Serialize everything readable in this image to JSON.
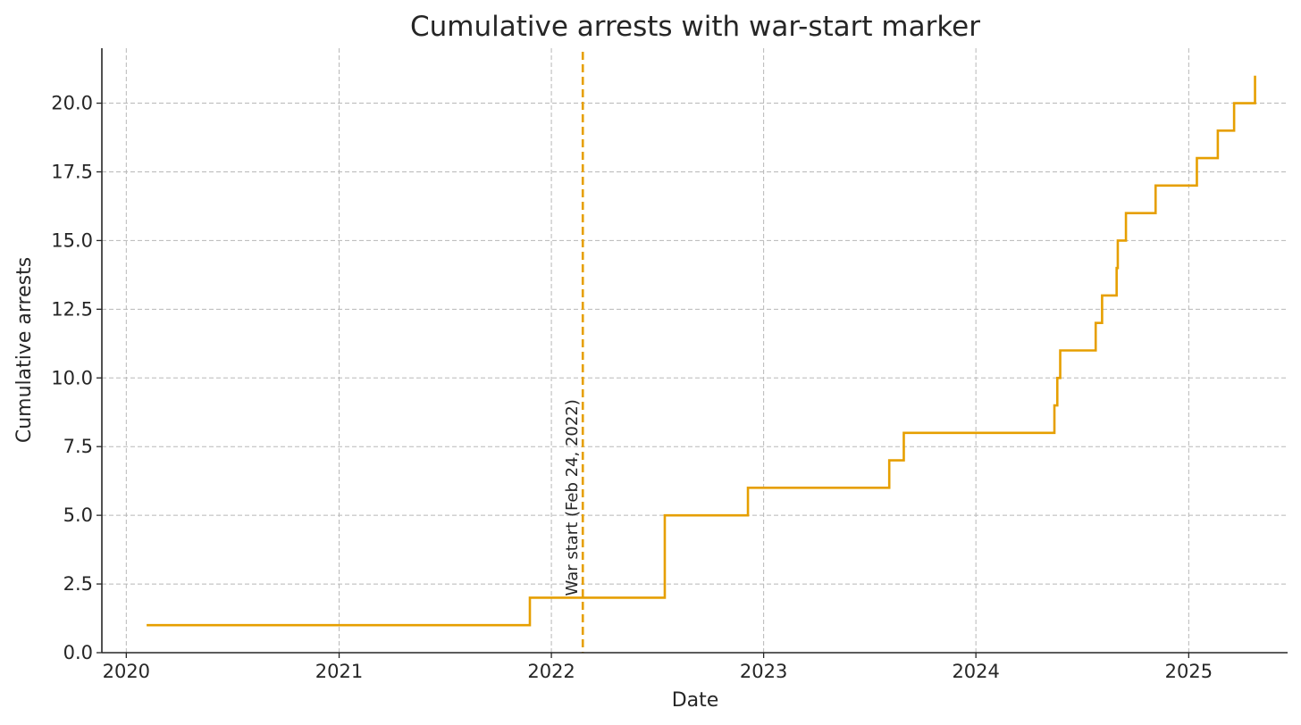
{
  "chart_data": {
    "type": "line",
    "step": "post",
    "title": "Cumulative arrests with war-start marker",
    "xlabel": "Date",
    "ylabel": "Cumulative arrests",
    "xlim": [
      "2019-11-20",
      "2025-06-20"
    ],
    "ylim": [
      0,
      22
    ],
    "xticks": [
      "2020-01-01",
      "2021-01-01",
      "2022-01-01",
      "2023-01-01",
      "2024-01-01",
      "2025-01-01"
    ],
    "xtick_labels": [
      "2020",
      "2021",
      "2022",
      "2023",
      "2024",
      "2025"
    ],
    "yticks": [
      0,
      2.5,
      5,
      7.5,
      10,
      12.5,
      15,
      17.5,
      20
    ],
    "ytick_labels": [
      "0.0",
      "2.5",
      "5.0",
      "7.5",
      "10.0",
      "12.5",
      "15.0",
      "17.5",
      "20.0"
    ],
    "grid": true,
    "color": "#E69F00",
    "series": [
      {
        "x": [
          "2020-02-05",
          "2021-11-25",
          "2022-07-15",
          "2022-12-05",
          "2023-08-05",
          "2023-08-30",
          "2024-05-15",
          "2024-05-20",
          "2024-05-25",
          "2024-07-25",
          "2024-08-05",
          "2024-08-30",
          "2024-09-01",
          "2024-09-15",
          "2024-11-05",
          "2025-01-15",
          "2025-02-20",
          "2025-03-20",
          "2025-04-25"
        ],
        "y": [
          1,
          2,
          5,
          6,
          7,
          8,
          9,
          10,
          11,
          12,
          13,
          14,
          15,
          16,
          17,
          18,
          19,
          20,
          21
        ]
      }
    ],
    "annotations": [
      {
        "type": "vline",
        "x": "2022-02-24",
        "label": "War start (Feb 24, 2022)",
        "style": "dashed",
        "color": "#E69F00"
      }
    ]
  }
}
